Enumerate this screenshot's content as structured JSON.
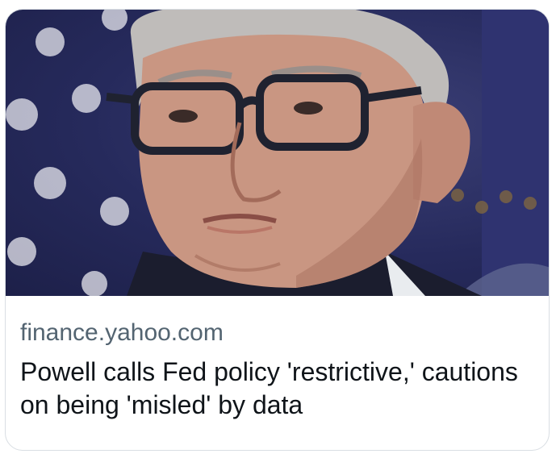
{
  "card": {
    "image": {
      "description_icon": "photo-icon"
    },
    "domain": "finance.yahoo.com",
    "headline": "Powell calls Fed policy 'restrictive,' cautions on being 'misled' by data"
  }
}
